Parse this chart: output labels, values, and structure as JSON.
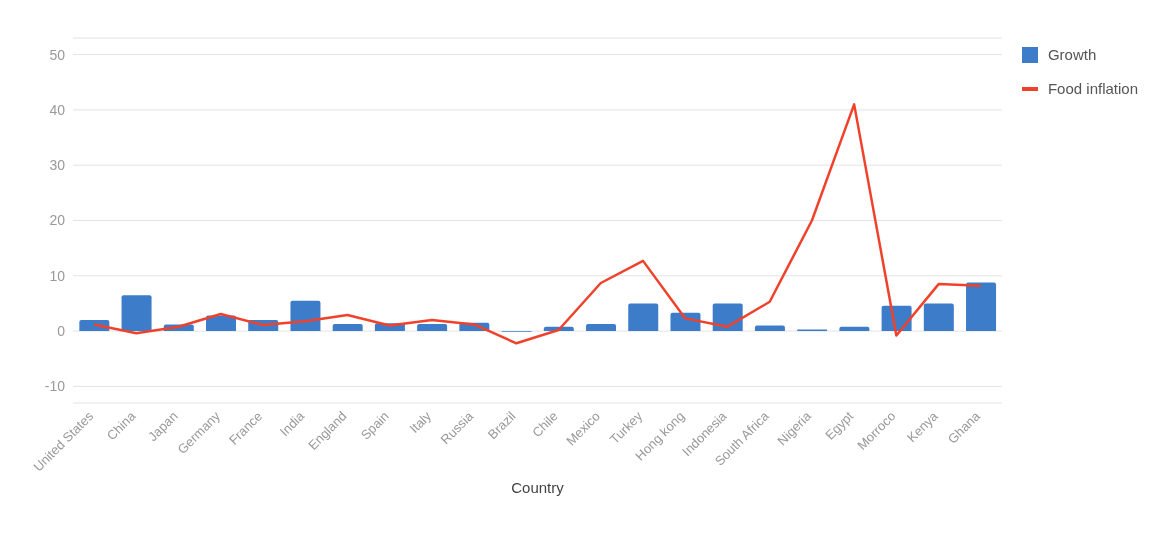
{
  "chart_data": {
    "type": "bar",
    "xlabel": "Country",
    "categories": [
      "United States",
      "China",
      "Japan",
      "Germany",
      "France",
      "India",
      "England",
      "Spain",
      "Italy",
      "Russia",
      "Brazil",
      "Chile",
      "Mexico",
      "Turkey",
      "Hong kong",
      "Indonesia",
      "South Africa",
      "Nigeria",
      "Egypt",
      "Morroco",
      "Kenya",
      "Ghana"
    ],
    "series": [
      {
        "name": "Growth",
        "color": "#3d7cc9",
        "values": [
          2.0,
          6.5,
          1.2,
          2.8,
          2.0,
          5.5,
          1.3,
          1.4,
          1.3,
          1.5,
          -0.1,
          0.8,
          1.3,
          5.0,
          3.3,
          5.0,
          1.0,
          0.3,
          0.8,
          4.6,
          5.0,
          8.8
        ]
      },
      {
        "name": "Food inflation",
        "type": "line",
        "color": "#f0422a",
        "values": [
          1.2,
          -0.4,
          0.8,
          3.1,
          1.1,
          1.8,
          2.9,
          1.0,
          2.0,
          1.2,
          -2.2,
          0.2,
          8.7,
          12.7,
          2.3,
          0.8,
          5.3,
          20,
          41,
          -0.8,
          8.5,
          8.2
        ]
      }
    ],
    "ylim": [
      -13,
      53
    ],
    "yticks": [
      -10,
      0,
      10,
      20,
      30,
      40,
      50
    ],
    "grid": "y",
    "legend": "top right",
    "marker": "none"
  }
}
